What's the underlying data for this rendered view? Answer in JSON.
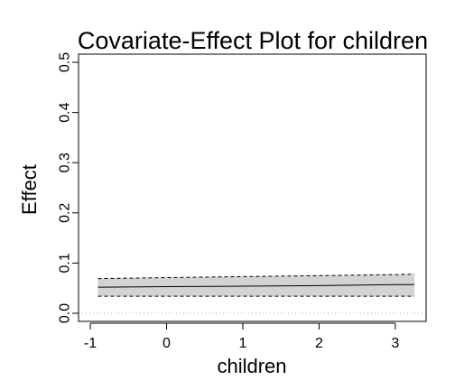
{
  "chart_data": {
    "type": "line",
    "title": "Covariate-Effect Plot for children",
    "xlabel": "children",
    "ylabel": "Effect",
    "xlim": [
      -1,
      3.25
    ],
    "ylim": [
      0,
      0.5
    ],
    "x_ticks": [
      -1,
      0,
      1,
      2,
      3
    ],
    "x_tick_labels": [
      "-1",
      "0",
      "1",
      "2",
      "3"
    ],
    "y_ticks": [
      0.0,
      0.1,
      0.2,
      0.3,
      0.4,
      0.5
    ],
    "y_tick_labels": [
      "0.0",
      "0.1",
      "0.2",
      "0.3",
      "0.4",
      "0.5"
    ],
    "x": [
      -0.9,
      0,
      1,
      2,
      3,
      3.25
    ],
    "series": [
      {
        "values": [
          0.052,
          0.053,
          0.054,
          0.055,
          0.057,
          0.057
        ]
      },
      {
        "values": [
          0.069,
          0.071,
          0.073,
          0.075,
          0.077,
          0.078
        ]
      },
      {
        "values": [
          0.034,
          0.034,
          0.034,
          0.034,
          0.034,
          0.034
        ]
      }
    ],
    "reference_line": {
      "y": 0
    },
    "colors": {
      "band_fill": "#d3d3d3",
      "line": "#000000",
      "reference": "#a9a9a9"
    },
    "grid": false
  }
}
